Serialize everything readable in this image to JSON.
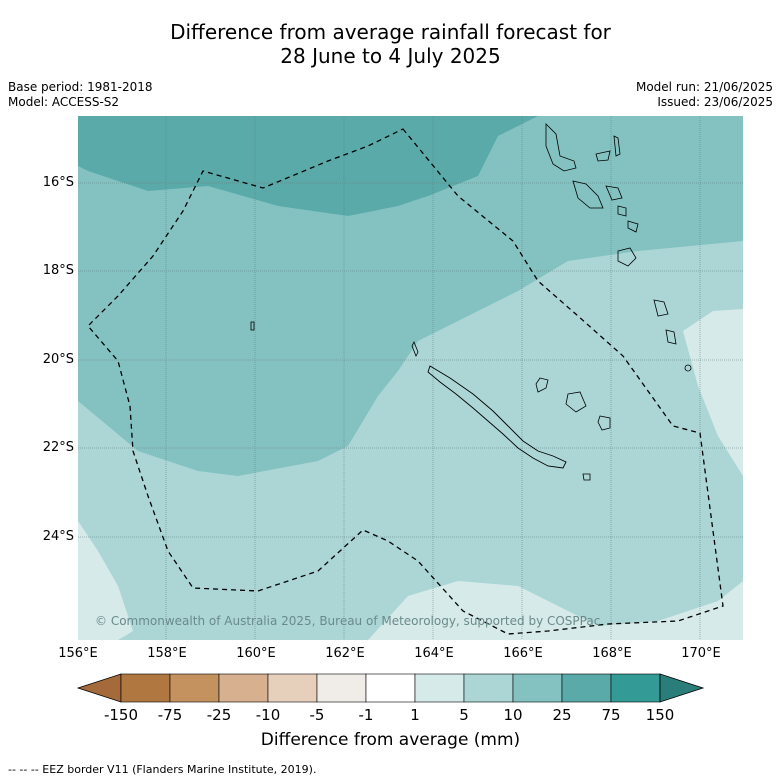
{
  "title": {
    "line1": "Difference from average rainfall forecast for",
    "line2": "28 June to 4 July 2025"
  },
  "meta_left": {
    "base_period": "Base period: 1981-2018",
    "model": "Model: ACCESS-S2"
  },
  "meta_right": {
    "model_run": "Model run: 21/06/2025",
    "issued": "Issued: 23/06/2025"
  },
  "lat_labels": [
    "16°S",
    "18°S",
    "20°S",
    "22°S",
    "24°S"
  ],
  "lon_labels": [
    "156°E",
    "158°E",
    "160°E",
    "162°E",
    "164°E",
    "166°E",
    "168°E",
    "170°E"
  ],
  "copyright": "© Commonwealth of Australia 2025, Bureau of Meteorology, supported by COSPPac",
  "colorbar": {
    "ticks": [
      "-150",
      "-75",
      "-25",
      "-10",
      "-5",
      "-1",
      "1",
      "5",
      "10",
      "25",
      "75",
      "150"
    ],
    "colors": [
      "#a56a3a",
      "#b07840",
      "#c4925f",
      "#d6b08f",
      "#e6d0bc",
      "#f0ece8",
      "#ffffff",
      "#d6eaea",
      "#acd6d6",
      "#84c2c2",
      "#5aaaaa",
      "#339a96",
      "#2a7e7a"
    ],
    "title": "Difference from average (mm)"
  },
  "footer": "--  --  -- EEZ border V11 (Flanders Marine Institute, 2019).",
  "map_colors": {
    "lightest": "#d6eaea",
    "light": "#acd6d6",
    "medium": "#84c2c2",
    "dark": "#5aaaaa"
  }
}
